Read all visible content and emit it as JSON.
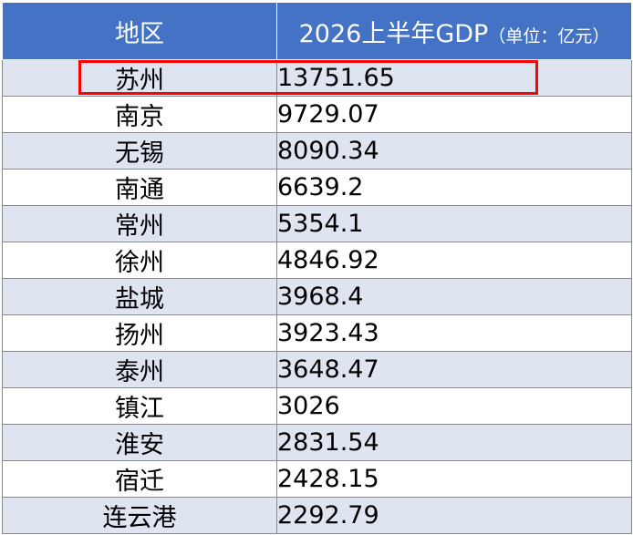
{
  "table": {
    "headers": {
      "region": "地区",
      "value_main": "2026上半年GDP",
      "value_unit": "（单位：亿元）"
    },
    "rows": [
      {
        "region": "苏州",
        "value": "13751.65"
      },
      {
        "region": "南京",
        "value": "9729.07"
      },
      {
        "region": "无锡",
        "value": "8090.34"
      },
      {
        "region": "南通",
        "value": "6639.2"
      },
      {
        "region": "常州",
        "value": "5354.1"
      },
      {
        "region": "徐州",
        "value": "4846.92"
      },
      {
        "region": "盐城",
        "value": "3968.4"
      },
      {
        "region": "扬州",
        "value": "3923.43"
      },
      {
        "region": "泰州",
        "value": "3648.47"
      },
      {
        "region": "镇江",
        "value": "3026"
      },
      {
        "region": "淮安",
        "value": "2831.54"
      },
      {
        "region": "宿迁",
        "value": "2428.15"
      },
      {
        "region": "连云港",
        "value": "2292.79"
      }
    ]
  },
  "colors": {
    "header_bg": "#4472c4",
    "stripe_bg": "#dfe4f1",
    "highlight_border": "#ff0000"
  },
  "highlight": {
    "row_index": 0
  }
}
